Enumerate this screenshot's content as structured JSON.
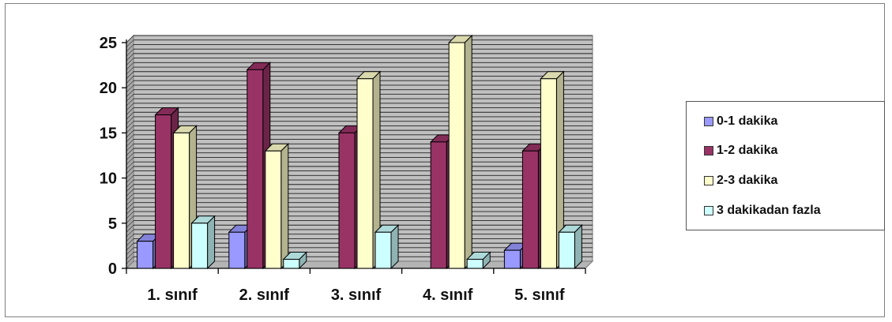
{
  "chart_data": {
    "type": "bar",
    "categories": [
      "1. sınıf",
      "2. sınıf",
      "3. sınıf",
      "4. sınıf",
      "5. sınıf"
    ],
    "series": [
      {
        "name": "0-1 dakika",
        "values": [
          3,
          4,
          0,
          0,
          2
        ],
        "color": "#9999ff"
      },
      {
        "name": "1-2 dakika",
        "values": [
          17,
          22,
          15,
          14,
          13
        ],
        "color": "#993366"
      },
      {
        "name": "2-3 dakika",
        "values": [
          15,
          13,
          21,
          25,
          21
        ],
        "color": "#ffffcc"
      },
      {
        "name": "3 dakikadan fazla",
        "values": [
          5,
          1,
          4,
          1,
          4
        ],
        "color": "#ccffff"
      }
    ],
    "ylim": [
      0,
      25
    ],
    "yticks": [
      0,
      5,
      10,
      15,
      20,
      25
    ],
    "gridlines": "horizontal",
    "plot_background": "#c0c0c0",
    "legend_position": "right",
    "title": "",
    "xlabel": "",
    "ylabel": ""
  }
}
